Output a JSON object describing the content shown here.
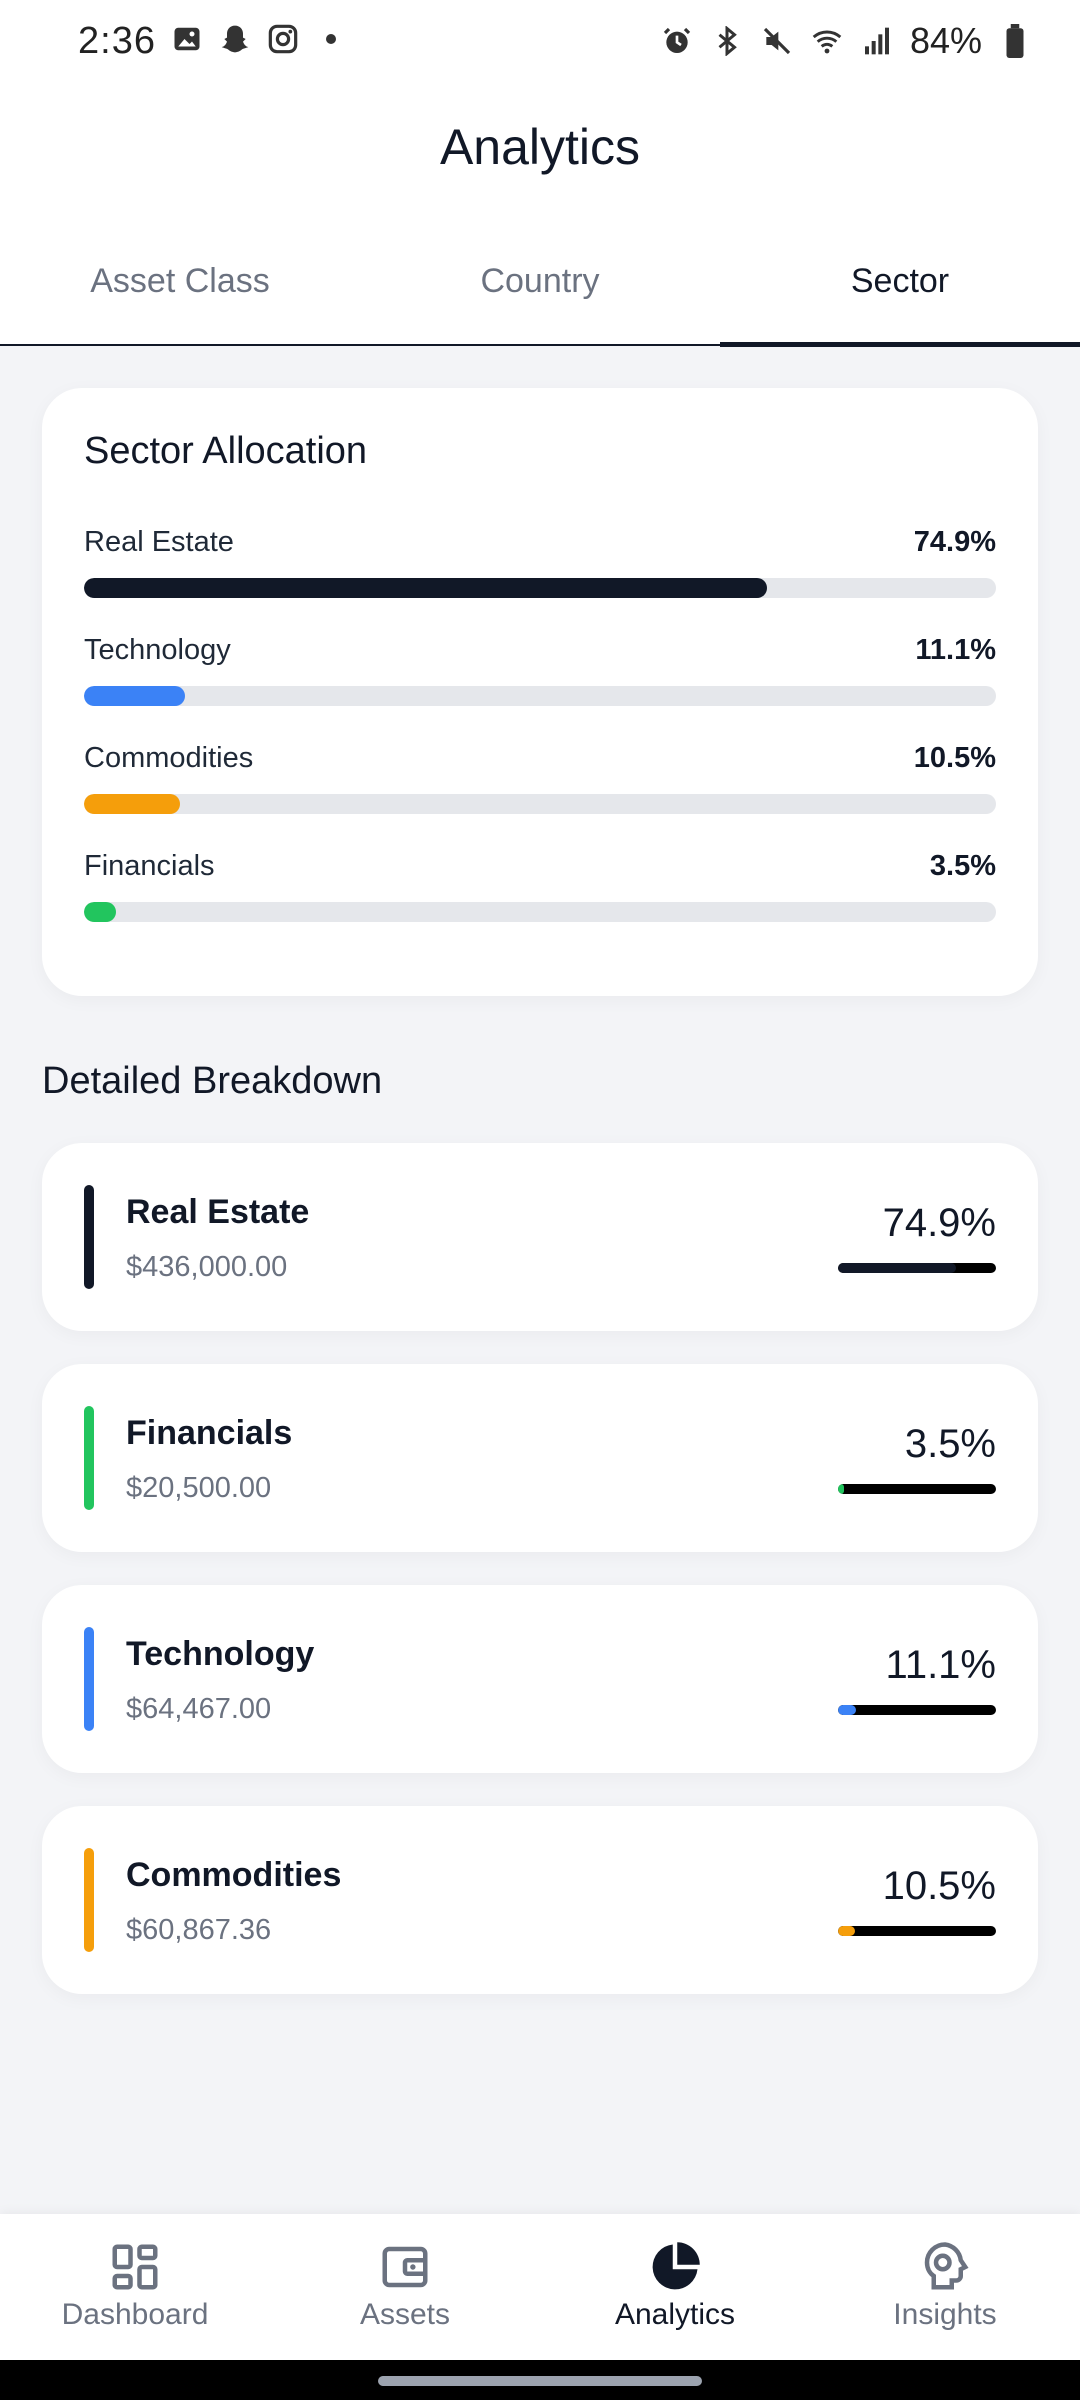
{
  "status_bar": {
    "time": "2:36",
    "battery": "84%",
    "left_icons": [
      "image-icon",
      "snapchat-icon",
      "instagram-icon",
      "dot-icon"
    ],
    "right_icons": [
      "alarm-icon",
      "bluetooth-icon",
      "mute-icon",
      "wifi-icon",
      "signal-icon",
      "battery-icon"
    ]
  },
  "header": {
    "title": "Analytics"
  },
  "tabs": [
    {
      "label": "Asset Class",
      "active": false
    },
    {
      "label": "Country",
      "active": false
    },
    {
      "label": "Sector",
      "active": true
    }
  ],
  "allocation": {
    "title": "Sector Allocation",
    "rows": [
      {
        "label": "Real Estate",
        "percent_text": "74.9%",
        "percent": 74.9,
        "color": "#111827"
      },
      {
        "label": "Technology",
        "percent_text": "11.1%",
        "percent": 11.1,
        "color": "#3b82f6"
      },
      {
        "label": "Commodities",
        "percent_text": "10.5%",
        "percent": 10.5,
        "color": "#f59e0b"
      },
      {
        "label": "Financials",
        "percent_text": "3.5%",
        "percent": 3.5,
        "color": "#22c55e"
      }
    ]
  },
  "breakdown": {
    "title": "Detailed Breakdown",
    "items": [
      {
        "name": "Real Estate",
        "value": "$436,000.00",
        "percent_text": "74.9%",
        "percent": 74.9,
        "color": "#111827"
      },
      {
        "name": "Financials",
        "value": "$20,500.00",
        "percent_text": "3.5%",
        "percent": 3.5,
        "color": "#22c55e"
      },
      {
        "name": "Technology",
        "value": "$64,467.00",
        "percent_text": "11.1%",
        "percent": 11.1,
        "color": "#3b82f6"
      },
      {
        "name": "Commodities",
        "value": "$60,867.36",
        "percent_text": "10.5%",
        "percent": 10.5,
        "color": "#f59e0b"
      }
    ]
  },
  "nav": [
    {
      "label": "Dashboard",
      "icon": "dashboard-icon",
      "active": false
    },
    {
      "label": "Assets",
      "icon": "wallet-icon",
      "active": false
    },
    {
      "label": "Analytics",
      "icon": "pie-chart-icon",
      "active": true
    },
    {
      "label": "Insights",
      "icon": "brain-icon",
      "active": false
    }
  ]
}
